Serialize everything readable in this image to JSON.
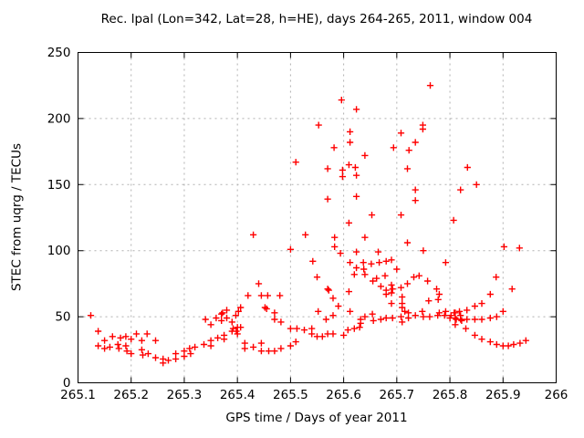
{
  "chart_data": {
    "type": "scatter",
    "title": "Rec. lpal (Lon=342, Lat=28, h=HE), days 264-265, 2011, window 004",
    "xlabel": "GPS time / Days of year 2011",
    "ylabel": "STEC from uqrg / TECUs",
    "xlim": [
      265.1,
      266
    ],
    "ylim": [
      0,
      250
    ],
    "x_tick_values": [
      265.1,
      265.2,
      265.3,
      265.4,
      265.5,
      265.6,
      265.7,
      265.8,
      265.9,
      266
    ],
    "x_tick_labels": [
      "265.1",
      "265.2",
      "265.3",
      "265.4",
      "265.5",
      "265.6",
      "265.7",
      "265.8",
      "265.9",
      "266"
    ],
    "y_tick_values": [
      0,
      50,
      100,
      150,
      200,
      250
    ],
    "y_tick_labels": [
      "0",
      "50",
      "100",
      "150",
      "200",
      "250"
    ],
    "grid": true,
    "legend": "none",
    "marker": "plus",
    "marker_color": "#ff0000",
    "grid_color": "#b0b0b0",
    "border_color": "#000000",
    "series": [
      {
        "name": "STEC",
        "points": [
          [
            265.124,
            51
          ],
          [
            265.138,
            39
          ],
          [
            265.138,
            28
          ],
          [
            265.15,
            32
          ],
          [
            265.15,
            26
          ],
          [
            265.16,
            27
          ],
          [
            265.165,
            35
          ],
          [
            265.175,
            29
          ],
          [
            265.177,
            26
          ],
          [
            265.18,
            34
          ],
          [
            265.19,
            35
          ],
          [
            265.19,
            28
          ],
          [
            265.192,
            24
          ],
          [
            265.2,
            33
          ],
          [
            265.2,
            22
          ],
          [
            265.21,
            37
          ],
          [
            265.22,
            32
          ],
          [
            265.22,
            25
          ],
          [
            265.222,
            21
          ],
          [
            265.23,
            37
          ],
          [
            265.232,
            22
          ],
          [
            265.246,
            32
          ],
          [
            265.246,
            19
          ],
          [
            265.26,
            18
          ],
          [
            265.26,
            15
          ],
          [
            265.27,
            17
          ],
          [
            265.284,
            18
          ],
          [
            265.284,
            22
          ],
          [
            265.3,
            20
          ],
          [
            265.3,
            24
          ],
          [
            265.31,
            26
          ],
          [
            265.312,
            22
          ],
          [
            265.32,
            27
          ],
          [
            265.337,
            29
          ],
          [
            265.35,
            32
          ],
          [
            265.35,
            28
          ],
          [
            265.363,
            34
          ],
          [
            265.375,
            36
          ],
          [
            265.375,
            33
          ],
          [
            265.39,
            39
          ],
          [
            265.4,
            42
          ],
          [
            265.4,
            37
          ],
          [
            265.34,
            48
          ],
          [
            265.35,
            44
          ],
          [
            265.36,
            49
          ],
          [
            265.37,
            52
          ],
          [
            265.37,
            47
          ],
          [
            265.372,
            53
          ],
          [
            265.38,
            55
          ],
          [
            265.38,
            49
          ],
          [
            265.39,
            46
          ],
          [
            265.392,
            41
          ],
          [
            265.397,
            51
          ],
          [
            265.398,
            39
          ],
          [
            265.406,
            57
          ],
          [
            265.406,
            42
          ],
          [
            265.402,
            54
          ],
          [
            265.43,
            112
          ],
          [
            265.44,
            75
          ],
          [
            265.42,
            66
          ],
          [
            265.445,
            66
          ],
          [
            265.457,
            66
          ],
          [
            265.48,
            66
          ],
          [
            265.455,
            56
          ],
          [
            265.47,
            53
          ],
          [
            265.452,
            57
          ],
          [
            265.47,
            48
          ],
          [
            265.482,
            46
          ],
          [
            265.414,
            30
          ],
          [
            265.414,
            26
          ],
          [
            265.43,
            27
          ],
          [
            265.445,
            30
          ],
          [
            265.445,
            24
          ],
          [
            265.459,
            24
          ],
          [
            265.47,
            24
          ],
          [
            265.482,
            26
          ],
          [
            265.5,
            28
          ],
          [
            265.51,
            31
          ],
          [
            265.5,
            41
          ],
          [
            265.512,
            41
          ],
          [
            265.526,
            40
          ],
          [
            265.54,
            41
          ],
          [
            265.54,
            37
          ],
          [
            265.55,
            35
          ],
          [
            265.56,
            35
          ],
          [
            265.57,
            37
          ],
          [
            265.58,
            37
          ],
          [
            265.6,
            36
          ],
          [
            265.608,
            40
          ],
          [
            265.62,
            41
          ],
          [
            265.63,
            42
          ],
          [
            265.552,
            54
          ],
          [
            265.567,
            48
          ],
          [
            265.58,
            51
          ],
          [
            265.59,
            58
          ],
          [
            265.612,
            54
          ],
          [
            265.61,
            69
          ],
          [
            265.632,
            48
          ],
          [
            265.57,
            71
          ],
          [
            265.572,
            70
          ],
          [
            265.58,
            64
          ],
          [
            265.62,
            82
          ],
          [
            265.55,
            80
          ],
          [
            265.64,
            82
          ],
          [
            265.655,
            77
          ],
          [
            265.662,
            79
          ],
          [
            265.678,
            81
          ],
          [
            265.67,
            73
          ],
          [
            265.68,
            70
          ],
          [
            265.69,
            74
          ],
          [
            265.692,
            71
          ],
          [
            265.68,
            67
          ],
          [
            265.69,
            68
          ],
          [
            265.708,
            72
          ],
          [
            265.71,
            65
          ],
          [
            265.69,
            60
          ],
          [
            265.71,
            60
          ],
          [
            265.72,
            75
          ],
          [
            265.732,
            80
          ],
          [
            265.742,
            81
          ],
          [
            265.758,
            77
          ],
          [
            265.775,
            71
          ],
          [
            265.76,
            62
          ],
          [
            265.778,
            63
          ],
          [
            265.78,
            67
          ],
          [
            265.71,
            57
          ],
          [
            265.715,
            54
          ],
          [
            265.632,
            45
          ],
          [
            265.64,
            50
          ],
          [
            265.654,
            52
          ],
          [
            265.656,
            47
          ],
          [
            265.67,
            48
          ],
          [
            265.68,
            49
          ],
          [
            265.692,
            49
          ],
          [
            265.708,
            50
          ],
          [
            265.71,
            46
          ],
          [
            265.722,
            53
          ],
          [
            265.722,
            49
          ],
          [
            265.735,
            51
          ],
          [
            265.748,
            54
          ],
          [
            265.75,
            50
          ],
          [
            265.762,
            50
          ],
          [
            265.777,
            51
          ],
          [
            265.78,
            53
          ],
          [
            265.79,
            51
          ],
          [
            265.792,
            54
          ],
          [
            265.8,
            49
          ],
          [
            265.802,
            51
          ],
          [
            265.81,
            53
          ],
          [
            265.812,
            48
          ],
          [
            265.82,
            51
          ],
          [
            265.822,
            47
          ],
          [
            265.887,
            80
          ],
          [
            265.917,
            71
          ],
          [
            265.876,
            67
          ],
          [
            265.86,
            60
          ],
          [
            265.847,
            58
          ],
          [
            265.832,
            55
          ],
          [
            265.818,
            54
          ],
          [
            265.808,
            53
          ],
          [
            265.9,
            54
          ],
          [
            265.81,
            49
          ],
          [
            265.82,
            48
          ],
          [
            265.832,
            48
          ],
          [
            265.847,
            48
          ],
          [
            265.86,
            48
          ],
          [
            265.876,
            49
          ],
          [
            265.888,
            50
          ],
          [
            265.81,
            44
          ],
          [
            265.83,
            41
          ],
          [
            265.847,
            36
          ],
          [
            265.86,
            33
          ],
          [
            265.876,
            31
          ],
          [
            265.888,
            29
          ],
          [
            265.9,
            28
          ],
          [
            265.91,
            28
          ],
          [
            265.92,
            29
          ],
          [
            265.932,
            30
          ],
          [
            265.943,
            32
          ],
          [
            265.5,
            101
          ],
          [
            265.528,
            112
          ],
          [
            265.542,
            92
          ],
          [
            265.51,
            167
          ],
          [
            265.553,
            195
          ],
          [
            265.57,
            162
          ],
          [
            265.582,
            178
          ],
          [
            265.583,
            110
          ],
          [
            265.583,
            103
          ],
          [
            265.594,
            98
          ],
          [
            265.596,
            214
          ],
          [
            265.598,
            161
          ],
          [
            265.598,
            156
          ],
          [
            265.61,
            165
          ],
          [
            265.612,
            190
          ],
          [
            265.612,
            182
          ],
          [
            265.624,
            207
          ],
          [
            265.622,
            163
          ],
          [
            265.624,
            157
          ],
          [
            265.624,
            141
          ],
          [
            265.57,
            139
          ],
          [
            265.61,
            121
          ],
          [
            265.624,
            99
          ],
          [
            265.612,
            91
          ],
          [
            265.624,
            87
          ],
          [
            265.637,
            91
          ],
          [
            265.638,
            86
          ],
          [
            265.652,
            90
          ],
          [
            265.667,
            91
          ],
          [
            265.68,
            92
          ],
          [
            265.69,
            93
          ],
          [
            265.7,
            86
          ],
          [
            265.64,
            172
          ],
          [
            265.64,
            110
          ],
          [
            265.653,
            127
          ],
          [
            265.665,
            99
          ],
          [
            265.708,
            189
          ],
          [
            265.694,
            178
          ],
          [
            265.723,
            176
          ],
          [
            265.735,
            182
          ],
          [
            265.749,
            195
          ],
          [
            265.749,
            192
          ],
          [
            265.72,
            162
          ],
          [
            265.735,
            146
          ],
          [
            265.735,
            138
          ],
          [
            265.708,
            127
          ],
          [
            265.72,
            106
          ],
          [
            265.75,
            100
          ],
          [
            265.763,
            225
          ],
          [
            265.792,
            91
          ],
          [
            265.807,
            123
          ],
          [
            265.82,
            146
          ],
          [
            265.833,
            163
          ],
          [
            265.85,
            150
          ],
          [
            265.902,
            103
          ],
          [
            265.931,
            102
          ]
        ]
      }
    ]
  }
}
